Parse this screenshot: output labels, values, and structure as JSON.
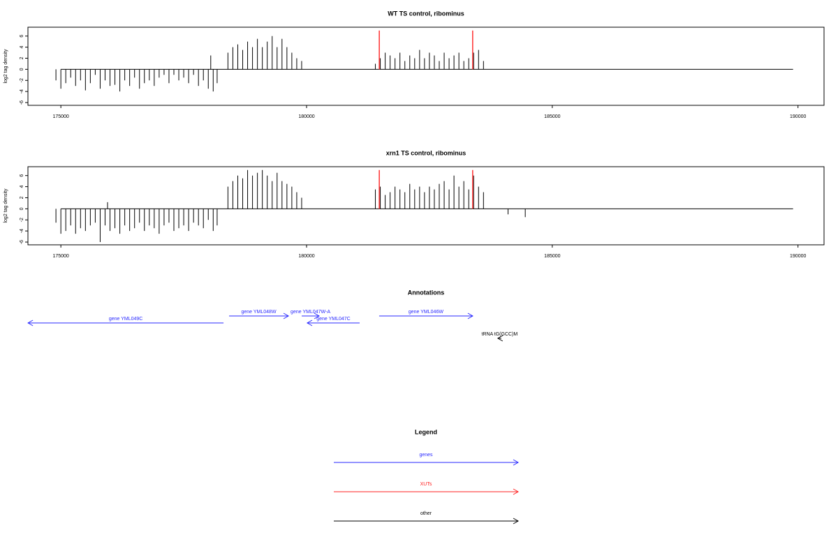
{
  "chart_data": [
    {
      "type": "needle",
      "title": "WT TS control, ribominus",
      "ylabel": "log2 tag density",
      "x": [
        174900,
        175000,
        175100,
        175200,
        175300,
        175400,
        175500,
        175600,
        175700,
        175800,
        175900,
        176000,
        176100,
        176200,
        176300,
        176400,
        176500,
        176600,
        176700,
        176800,
        176900,
        177000,
        177100,
        177200,
        177300,
        177400,
        177500,
        177600,
        177700,
        177800,
        177900,
        178000,
        178050,
        178100,
        178180,
        178400,
        178500,
        178600,
        178700,
        178800,
        178900,
        179000,
        179100,
        179200,
        179300,
        179400,
        179500,
        179600,
        179700,
        179800,
        179900,
        181400,
        181500,
        181600,
        181700,
        181800,
        181900,
        182000,
        182100,
        182200,
        182300,
        182400,
        182500,
        182600,
        182700,
        182800,
        182900,
        183000,
        183100,
        183200,
        183300,
        183400,
        183500,
        183600
      ],
      "values": [
        -2,
        -3.5,
        -2.5,
        -1.5,
        -3,
        -2,
        -3.8,
        -2.5,
        -1,
        -3.5,
        -2,
        -3,
        -2.8,
        -4,
        -2,
        -3,
        -1.5,
        -3.5,
        -2.5,
        -2,
        -3,
        -1.5,
        -1,
        -2.5,
        -1,
        -2,
        -1.5,
        -2.5,
        -1,
        -3,
        -2,
        -3.5,
        2.5,
        -4,
        -2.5,
        3,
        4,
        4.5,
        3.5,
        5,
        4,
        5.5,
        4,
        5,
        6,
        4,
        5.5,
        4,
        3,
        2,
        1.5,
        1,
        2,
        3,
        2.5,
        2,
        3,
        1.5,
        2.5,
        2,
        3.5,
        2,
        3,
        2.5,
        1.5,
        3,
        2,
        2.5,
        3,
        1.5,
        2,
        3,
        3.5,
        1.5
      ],
      "color": "#000000",
      "baseline_x": [
        175000,
        189900
      ],
      "highlight_x": [
        181480,
        183380
      ],
      "highlight_values": [
        7,
        7
      ],
      "highlight_color": "#ff3030",
      "xlim": [
        174330,
        190530
      ],
      "xticks": [
        175000,
        180000,
        185000,
        190000
      ],
      "ylim": [
        -6.5,
        7.6
      ],
      "yticks": [
        -6,
        -4,
        -2,
        0,
        2,
        4,
        6
      ]
    },
    {
      "type": "needle",
      "title": "xrn1 TS control, ribominus",
      "ylabel": "log2 tag density",
      "x": [
        174900,
        175000,
        175100,
        175200,
        175300,
        175400,
        175500,
        175600,
        175700,
        175800,
        175900,
        175950,
        176000,
        176100,
        176200,
        176300,
        176400,
        176500,
        176600,
        176700,
        176800,
        176900,
        177000,
        177100,
        177200,
        177300,
        177400,
        177500,
        177600,
        177700,
        177800,
        177900,
        178000,
        178100,
        178180,
        178400,
        178500,
        178600,
        178700,
        178800,
        178900,
        179000,
        179100,
        179200,
        179300,
        179400,
        179500,
        179600,
        179700,
        179800,
        179900,
        181400,
        181500,
        181600,
        181700,
        181800,
        181900,
        182000,
        182100,
        182200,
        182300,
        182400,
        182500,
        182600,
        182700,
        182800,
        182900,
        183000,
        183100,
        183200,
        183300,
        183400,
        183500,
        183600,
        184100,
        184450
      ],
      "values": [
        -2.5,
        -4.5,
        -4,
        -3,
        -4.5,
        -3.5,
        -4,
        -3,
        -2.5,
        -6,
        -3,
        1.2,
        -4,
        -3.5,
        -4.5,
        -3,
        -4,
        -3.5,
        -2.5,
        -4,
        -3,
        -3.5,
        -4.5,
        -3,
        -2.5,
        -4,
        -3.5,
        -3,
        -4,
        -2.5,
        -3,
        -3.5,
        -2,
        -4,
        -3,
        4,
        5,
        6,
        5.5,
        7,
        6,
        6.5,
        7,
        6,
        5,
        6.5,
        5,
        4.5,
        4,
        3,
        2,
        3.5,
        4,
        2.5,
        3,
        4,
        3.5,
        3,
        4.5,
        3.5,
        4,
        3,
        4,
        3.5,
        4.5,
        5,
        3.5,
        6,
        4,
        5,
        3.5,
        6,
        4,
        3,
        -1,
        -1.5
      ],
      "color": "#000000",
      "baseline_x": [
        175000,
        189900
      ],
      "highlight_x": [
        181480,
        183380
      ],
      "highlight_values": [
        7,
        7
      ],
      "highlight_color": "#ff3030",
      "xlim": [
        174330,
        190530
      ],
      "xticks": [
        175000,
        180000,
        185000,
        190000
      ],
      "ylim": [
        -6.5,
        7.6
      ],
      "yticks": [
        -6,
        -4,
        -2,
        0,
        2,
        4,
        6
      ]
    }
  ],
  "annotations": {
    "title": "Annotations",
    "xlim": [
      174330,
      190530
    ],
    "features": [
      {
        "label": "gene YML049C",
        "start": 174332,
        "end": 178310,
        "strand": "-",
        "row": 1,
        "color": "#2a2aff"
      },
      {
        "label": "gene YML048W",
        "start": 178423,
        "end": 179631,
        "strand": "+",
        "row": 0,
        "color": "#2a2aff"
      },
      {
        "label": "gene YML047W-A",
        "start": 179901,
        "end": 180256,
        "strand": "+",
        "row": 0,
        "color": "#2a2aff"
      },
      {
        "label": "gene YML047C",
        "start": 180014,
        "end": 181080,
        "strand": "-",
        "row": 1,
        "color": "#2a2aff"
      },
      {
        "label": "gene YML046W",
        "start": 181477,
        "end": 183381,
        "strand": "+",
        "row": 0,
        "color": "#2a2aff"
      },
      {
        "label": "tRNA tG(GCC)M",
        "start": 183892,
        "end": 183963,
        "strand": "-",
        "row": 2,
        "color": "#000000"
      }
    ]
  },
  "legend": {
    "title": "Legend",
    "items": [
      {
        "label": "genes",
        "color": "#2a2aff"
      },
      {
        "label": "XUTs",
        "color": "#ff2020"
      },
      {
        "label": "other",
        "color": "#000000"
      }
    ]
  }
}
